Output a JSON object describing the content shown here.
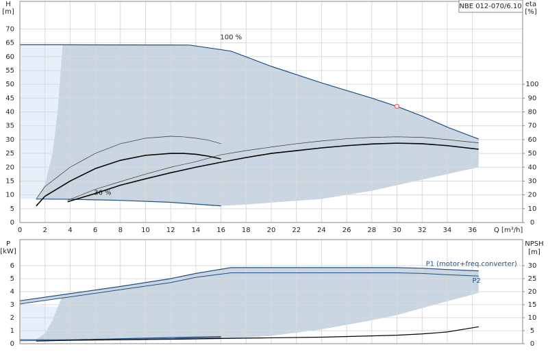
{
  "chart_data": [
    {
      "type": "line",
      "model_label": "NBE 012-070/6.10",
      "y_label": "H",
      "y_unit": "[m]",
      "y2_label": "eta",
      "y2_unit": "[%]",
      "x_label": "Q [m³/h]",
      "xlim": [
        0,
        40
      ],
      "xticks": [
        0,
        2,
        4,
        6,
        8,
        10,
        12,
        14,
        16,
        18,
        20,
        22,
        24,
        26,
        28,
        30,
        32,
        34,
        36
      ],
      "ylim": [
        0,
        80
      ],
      "yticks": [
        0,
        5,
        10,
        15,
        20,
        25,
        30,
        35,
        40,
        45,
        50,
        55,
        60,
        65,
        70
      ],
      "y2lim": [
        0,
        160
      ],
      "y2ticks": [
        0,
        10,
        20,
        30,
        40,
        50,
        60,
        70,
        80,
        90,
        100
      ],
      "grid": true,
      "range_color": "#c9d6e2",
      "outer_color": "#e7f0fa",
      "left_boundary": {
        "x": [
          1.3,
          2,
          2.6,
          3.0,
          3.4
        ],
        "values": [
          8.5,
          14,
          25,
          40,
          64.3
        ]
      },
      "lower_boundary": {
        "x": [
          16,
          18,
          20,
          24,
          28,
          30,
          33,
          36.5
        ],
        "values": [
          6,
          6.5,
          7.2,
          8.5,
          11.5,
          13.5,
          16.5,
          20
        ]
      },
      "series": [
        {
          "name": "100 %",
          "color": "#1f4e84",
          "line_width": 1.2,
          "x": [
            0,
            3.4,
            13.5,
            16.8,
            20,
            24,
            28,
            30,
            32,
            34,
            36.5
          ],
          "values": [
            64.3,
            64.3,
            64.2,
            62,
            56.5,
            50.5,
            45,
            42,
            38.5,
            34.5,
            30.2
          ]
        },
        {
          "name": "36 %",
          "color": "#1f4e84",
          "line_width": 1.2,
          "x": [
            1.3,
            4,
            8,
            12,
            16
          ],
          "values": [
            8.5,
            8.4,
            8,
            7.3,
            6
          ]
        },
        {
          "color": "#333333",
          "line_width": 0.7,
          "axis": "y2",
          "x": [
            3.8,
            6,
            8,
            10,
            12,
            14,
            16,
            18,
            20,
            22,
            24,
            26,
            28,
            30,
            32,
            34,
            36.5
          ],
          "values": [
            16,
            24,
            29.6,
            35,
            40,
            44,
            49,
            52,
            54.6,
            57,
            59,
            60.6,
            61.6,
            62,
            61.6,
            60,
            57.6
          ]
        },
        {
          "color": "#000000",
          "line_width": 1.6,
          "axis": "y2",
          "x": [
            3.8,
            6,
            8,
            10,
            12,
            14,
            16,
            18,
            20,
            22,
            24,
            26,
            28,
            30,
            32,
            34,
            36.5
          ],
          "values": [
            15,
            21,
            27,
            31.6,
            36,
            40,
            43.6,
            47,
            50,
            52,
            54,
            55.6,
            56.8,
            57.4,
            57,
            55.6,
            53
          ]
        },
        {
          "color": "#333333",
          "line_width": 0.7,
          "axis": "y2",
          "x": [
            1.3,
            2,
            4,
            6,
            8,
            10,
            12,
            13,
            14,
            15,
            16
          ],
          "values": [
            17,
            26,
            40,
            50,
            57,
            61,
            62.4,
            62,
            61,
            59.6,
            57
          ]
        },
        {
          "color": "#000000",
          "line_width": 1.6,
          "axis": "y2",
          "x": [
            1.3,
            2,
            4,
            6,
            8,
            10,
            12,
            13,
            14,
            15,
            16
          ],
          "values": [
            12,
            19,
            30,
            39,
            45,
            48.6,
            50,
            50,
            49.4,
            48,
            46
          ]
        }
      ],
      "duty_point": {
        "x": 30,
        "y": 42,
        "color": "#e06060"
      }
    },
    {
      "type": "line",
      "y_label": "P",
      "y_unit": "[kW]",
      "y2_label": "NPSH",
      "y2_unit": "[m]",
      "xlim": [
        0,
        40
      ],
      "ylim": [
        0,
        8
      ],
      "yticks": [
        0,
        1,
        2,
        3,
        4,
        5,
        6
      ],
      "y2lim": [
        0,
        40
      ],
      "y2ticks": [
        0,
        5,
        10,
        15,
        20,
        25,
        30
      ],
      "grid": true,
      "range_color": "#c9d6e2",
      "outer_color": "#e7f0fa",
      "left_boundary": {
        "x": [
          1.3,
          2,
          2.6,
          3.0,
          3.4
        ],
        "values": [
          0.3,
          0.8,
          1.8,
          2.8,
          3.7
        ]
      },
      "lower_boundary": {
        "x": [
          1.3,
          16,
          20,
          24,
          28,
          30,
          33,
          36.5
        ],
        "values": [
          0.3,
          0.35,
          0.6,
          1.1,
          1.8,
          2.2,
          3,
          3.9
        ]
      },
      "series": [
        {
          "name": "P1 (motor+freq.converter)",
          "color": "#1f4e84",
          "line_width": 1.2,
          "x": [
            0,
            4,
            8,
            12,
            14,
            16.8,
            20,
            24,
            28,
            30,
            32,
            34,
            36.5
          ],
          "values": [
            3.3,
            3.85,
            4.4,
            5.0,
            5.4,
            5.85,
            5.85,
            5.85,
            5.85,
            5.85,
            5.8,
            5.7,
            5.6
          ]
        },
        {
          "name": "P2",
          "color": "#1f4e84",
          "line_width": 1,
          "x": [
            0,
            4,
            8,
            12,
            14,
            16.8,
            20,
            24,
            28,
            30,
            32,
            34,
            36.5
          ],
          "values": [
            3.05,
            3.6,
            4.15,
            4.7,
            5.1,
            5.45,
            5.45,
            5.45,
            5.45,
            5.45,
            5.4,
            5.3,
            5.2
          ]
        },
        {
          "color": "#1f4e84",
          "line_width": 1.2,
          "x": [
            0,
            4,
            8,
            12,
            16
          ],
          "values": [
            0.3,
            0.3,
            0.38,
            0.47,
            0.55
          ]
        },
        {
          "color": "#1f4e84",
          "line_width": 0.8,
          "x": [
            0,
            4,
            8,
            12,
            16
          ],
          "values": [
            0.22,
            0.25,
            0.32,
            0.4,
            0.47
          ]
        },
        {
          "color": "#000000",
          "line_width": 1.2,
          "axis": "y2",
          "x": [
            1.3,
            4,
            8,
            12,
            16,
            20,
            24,
            28,
            30,
            32,
            34,
            36.5
          ],
          "values": [
            1,
            1.3,
            1.5,
            1.7,
            2,
            2.25,
            2.5,
            3,
            3.25,
            3.75,
            4.5,
            6.5
          ]
        }
      ]
    }
  ]
}
